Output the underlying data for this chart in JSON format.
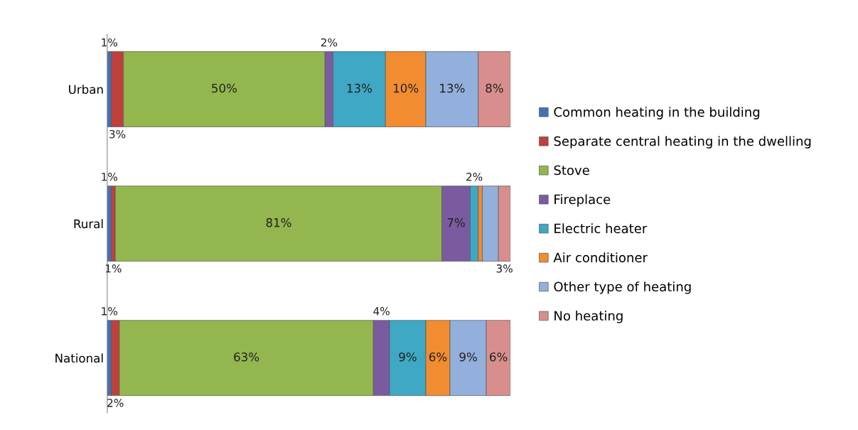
{
  "chart_data": {
    "type": "bar",
    "orientation": "horizontal",
    "stacked": true,
    "categories": [
      "Urban",
      "Rural",
      "National"
    ],
    "series": [
      {
        "name": "Common heating in the building",
        "color": "#3f72b5",
        "values": [
          1,
          1,
          1
        ],
        "value_labels": [
          "1%",
          "1%",
          "1%"
        ]
      },
      {
        "name": "Separate central heating in the dwelling",
        "color": "#c0403c",
        "values": [
          3,
          1,
          2
        ],
        "value_labels": [
          "3%",
          "1%",
          "2%"
        ]
      },
      {
        "name": "Stove",
        "color": "#93b64f",
        "values": [
          50,
          81,
          63
        ],
        "value_labels": [
          "50%",
          "81%",
          "63%"
        ]
      },
      {
        "name": "Fireplace",
        "color": "#7a5ba0",
        "values": [
          2,
          7,
          4
        ],
        "value_labels": [
          "2%",
          "7%",
          "4%"
        ]
      },
      {
        "name": "Electric heater",
        "color": "#3fa8c4",
        "values": [
          13,
          2,
          9
        ],
        "value_labels": [
          "13%",
          "2%",
          "9%"
        ]
      },
      {
        "name": "Air conditioner",
        "color": "#f18c30",
        "values": [
          10,
          1,
          6
        ],
        "value_labels": [
          "10%",
          null,
          "6%"
        ]
      },
      {
        "name": "Other type of heating",
        "color": "#92b0db",
        "values": [
          13,
          4,
          9
        ],
        "value_labels": [
          "13%",
          null,
          "9%"
        ]
      },
      {
        "name": "No heating",
        "color": "#d88e8c",
        "values": [
          8,
          3,
          6
        ],
        "value_labels": [
          "8%",
          "3%",
          "6%"
        ]
      }
    ],
    "legend": "right",
    "grid": false
  }
}
